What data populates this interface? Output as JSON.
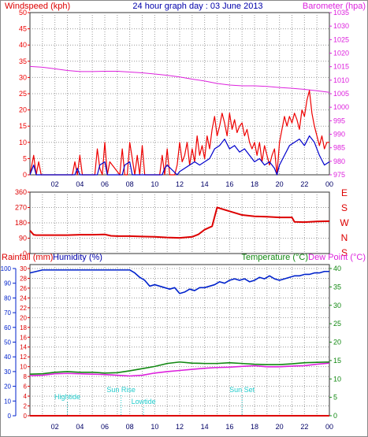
{
  "header": {
    "windspeed_label": "Windspeed (kph)",
    "title": "24 hour graph day : 03 June 2013",
    "barometer_label": "Barometer (hpa)"
  },
  "labels": {
    "rainfall": "Rainfall (mm)",
    "humidity": "Humidity (%)",
    "temperature": "Temperature (°C)",
    "dewpoint": "Dew Point (°C)"
  },
  "annotations": {
    "hightide": "Hightide",
    "sunrise": "Sun Rise",
    "lowtide": "Lowtide",
    "sunset": "Sun Set"
  },
  "colors": {
    "wind": "#ee0000",
    "wind_avg": "#0000cc",
    "barometer": "#dd22dd",
    "direction": "#dd0000",
    "humidity": "#0022cc",
    "temperature": "#118811",
    "dewpoint": "#dd22dd",
    "rainfall": "#dd0000",
    "grid": "#999999",
    "annotation": "#22cccc",
    "title": "#0000aa"
  },
  "x_ticks": [
    "02",
    "04",
    "06",
    "08",
    "10",
    "12",
    "14",
    "16",
    "18",
    "20",
    "22",
    "00"
  ],
  "compass": [
    "E",
    "S",
    "W",
    "N",
    "S"
  ],
  "chart_data": [
    {
      "type": "line",
      "name": "wind",
      "xlim": [
        0,
        24
      ],
      "ylim_left": [
        0,
        50
      ],
      "yticks_left": [
        0,
        5,
        10,
        15,
        20,
        25,
        30,
        35,
        40,
        45,
        50
      ],
      "ylim_right": [
        975,
        1035
      ],
      "yticks_right": [
        975,
        980,
        985,
        990,
        995,
        1000,
        1005,
        1010,
        1015,
        1020,
        1025,
        1030,
        1035
      ],
      "series": [
        {
          "name": "Windspeed (kph)",
          "x": [
            0,
            0.3,
            0.5,
            0.7,
            0.9,
            1.2,
            3.4,
            3.6,
            3.8,
            4.0,
            4.2,
            5.2,
            5.4,
            5.6,
            5.8,
            6.0,
            6.2,
            6.4,
            7.2,
            7.4,
            7.6,
            7.8,
            8.0,
            8.4,
            8.6,
            8.8,
            9.0,
            9.2,
            10.4,
            10.6,
            10.8,
            11.0,
            11.2,
            11.6,
            11.8,
            12.0,
            12.2,
            12.4,
            12.6,
            12.8,
            13.0,
            13.2,
            13.4,
            13.6,
            13.8,
            14.0,
            14.2,
            14.4,
            14.6,
            14.8,
            15.0,
            15.2,
            15.4,
            15.6,
            15.8,
            16.0,
            16.2,
            16.4,
            16.6,
            16.8,
            17.0,
            17.2,
            17.4,
            17.6,
            17.8,
            18.0,
            18.2,
            18.4,
            18.6,
            18.8,
            19.0,
            19.2,
            19.4,
            19.6,
            19.8,
            20.0,
            20.2,
            20.4,
            20.6,
            20.8,
            21.0,
            21.2,
            21.4,
            21.6,
            21.8,
            22.0,
            22.2,
            22.4,
            22.6,
            22.8,
            23.0,
            23.2,
            23.4,
            23.6,
            23.8,
            24.0
          ],
          "values": [
            0,
            6,
            0,
            4,
            0,
            0,
            0,
            4,
            0,
            6,
            0,
            0,
            8,
            2,
            0,
            10,
            0,
            4,
            0,
            8,
            0,
            0,
            10,
            0,
            6,
            0,
            9,
            0,
            0,
            6,
            0,
            8,
            0,
            0,
            3,
            10,
            4,
            6,
            10,
            3,
            8,
            4,
            12,
            6,
            9,
            5,
            12,
            8,
            14,
            18,
            12,
            15,
            19,
            16,
            12,
            19,
            14,
            17,
            13,
            15,
            16,
            12,
            14,
            10,
            8,
            10,
            6,
            10,
            4,
            9,
            6,
            3,
            6,
            8,
            0,
            10,
            14,
            18,
            15,
            18,
            16,
            19,
            17,
            14,
            20,
            18,
            23,
            26,
            19,
            15,
            12,
            9,
            12,
            8,
            10,
            10
          ]
        },
        {
          "name": "Average windspeed",
          "x": [
            0,
            0.3,
            0.5,
            0.9,
            3.6,
            3.8,
            4.0,
            5.4,
            5.6,
            6.0,
            6.2,
            7.4,
            7.6,
            8.0,
            8.2,
            10.6,
            10.8,
            11.0,
            11.8,
            12.0,
            12.4,
            12.8,
            13.2,
            13.6,
            14.0,
            14.4,
            14.8,
            15.2,
            15.6,
            16.0,
            16.4,
            16.8,
            17.2,
            17.6,
            18.0,
            18.4,
            18.8,
            19.2,
            19.6,
            19.8,
            20.0,
            20.4,
            20.8,
            21.2,
            21.6,
            22.0,
            22.4,
            22.8,
            23.2,
            23.6,
            24.0
          ],
          "values": [
            0,
            3,
            0,
            0,
            0,
            2,
            0,
            0,
            3,
            4,
            0,
            0,
            3,
            4,
            0,
            0,
            2,
            3,
            0,
            1,
            2,
            3,
            4,
            3,
            4,
            5,
            8,
            9,
            11,
            8,
            9,
            7,
            8,
            6,
            4,
            5,
            3,
            4,
            2,
            0,
            3,
            6,
            9,
            10,
            11,
            9,
            12,
            10,
            6,
            3,
            4
          ]
        },
        {
          "name": "Barometer (hpa)",
          "axis": "right",
          "x": [
            0,
            1,
            2,
            3,
            4,
            5,
            6,
            7,
            8,
            9,
            10,
            11,
            12,
            13,
            14,
            15,
            16,
            17,
            18,
            19,
            20,
            21,
            22,
            23,
            24
          ],
          "values": [
            1015.1,
            1014.8,
            1014.2,
            1013.6,
            1013.2,
            1013.2,
            1013.3,
            1013.3,
            1013.0,
            1012.7,
            1012.3,
            1011.8,
            1011.2,
            1010.4,
            1009.7,
            1008.8,
            1008.2,
            1007.9,
            1007.9,
            1007.7,
            1007.3,
            1007.0,
            1006.6,
            1006.1,
            1005.5
          ]
        }
      ]
    },
    {
      "type": "line",
      "name": "wind-direction",
      "xlim": [
        0,
        24
      ],
      "ylim": [
        0,
        360
      ],
      "yticks": [
        0,
        90,
        180,
        270,
        360
      ],
      "series": [
        {
          "name": "Wind direction",
          "x": [
            0,
            0.3,
            0.5,
            1,
            2,
            3,
            4,
            5,
            6,
            6.5,
            7,
            8,
            9,
            10,
            11,
            12,
            13,
            13.5,
            14,
            14.6,
            14.8,
            15,
            16,
            17,
            18,
            19,
            20,
            21,
            21.2,
            22,
            23,
            24
          ],
          "values": [
            135,
            110,
            108,
            108,
            108,
            108,
            110,
            110,
            112,
            104,
            102,
            102,
            100,
            98,
            94,
            92,
            98,
            112,
            140,
            160,
            215,
            270,
            248,
            226,
            218,
            216,
            212,
            212,
            186,
            184,
            188,
            190
          ]
        }
      ]
    },
    {
      "type": "line",
      "name": "temperature-humidity",
      "xlim": [
        0,
        24
      ],
      "ylim_left_outer": [
        0,
        100
      ],
      "yticks_left_outer": [
        0,
        10,
        20,
        30,
        40,
        50,
        60,
        70,
        80,
        90,
        100
      ],
      "ylim_left_inner": [
        0,
        30
      ],
      "yticks_left_inner": [
        0,
        2,
        4,
        6,
        8,
        10,
        12,
        14,
        16,
        18,
        20,
        22,
        24,
        26,
        28,
        30
      ],
      "ylim_right": [
        0,
        40
      ],
      "yticks_right": [
        0,
        5,
        10,
        15,
        20,
        25,
        30,
        35,
        40
      ],
      "series": [
        {
          "name": "Humidity (%)",
          "axis": "left_outer",
          "x": [
            0,
            0.5,
            1,
            2,
            3,
            4,
            5,
            6,
            7,
            8,
            8.4,
            8.8,
            9.2,
            9.6,
            10,
            10.4,
            10.8,
            11.2,
            11.6,
            12,
            12.4,
            12.8,
            13.2,
            13.6,
            14,
            14.4,
            14.8,
            15.2,
            15.6,
            16,
            16.4,
            16.8,
            17.2,
            17.6,
            18,
            18.4,
            18.8,
            19.2,
            19.6,
            20,
            20.4,
            20.8,
            21.2,
            21.6,
            22,
            22.4,
            22.8,
            23.2,
            23.6,
            24
          ],
          "values": [
            97,
            98,
            99,
            99,
            99,
            99,
            99,
            99,
            99,
            99,
            97,
            94,
            92,
            88,
            89,
            88,
            87,
            86,
            87,
            83,
            84,
            86,
            85,
            87,
            87,
            88,
            89,
            91,
            90,
            92,
            93,
            92,
            93,
            91,
            92,
            94,
            93,
            95,
            93,
            92,
            93,
            94,
            95,
            95,
            96,
            96,
            97,
            97,
            98,
            98
          ]
        },
        {
          "name": "Temperature (°C)",
          "axis": "right",
          "x": [
            0,
            1,
            2,
            3,
            4,
            5,
            6,
            7,
            8,
            9,
            10,
            11,
            12,
            13,
            14,
            15,
            16,
            17,
            18,
            19,
            20,
            21,
            22,
            23,
            24
          ],
          "values": [
            11.3,
            11.4,
            11.8,
            12.0,
            11.8,
            11.8,
            11.6,
            11.7,
            12.2,
            12.8,
            13.4,
            14.2,
            14.6,
            14.3,
            14.2,
            14.2,
            14.4,
            14.2,
            14.0,
            13.9,
            13.9,
            14.1,
            14.4,
            14.5,
            14.6
          ]
        },
        {
          "name": "Dew Point (°C)",
          "axis": "right",
          "x": [
            0,
            1,
            2,
            3,
            4,
            5,
            6,
            7,
            8,
            9,
            10,
            11,
            12,
            13,
            14,
            15,
            16,
            17,
            18,
            19,
            20,
            21,
            22,
            23,
            24
          ],
          "values": [
            10.9,
            11.0,
            11.4,
            11.5,
            11.4,
            11.3,
            11.2,
            11.0,
            10.8,
            11.0,
            11.6,
            12.0,
            12.3,
            12.6,
            12.9,
            13.1,
            13.2,
            13.4,
            13.6,
            13.3,
            13.3,
            13.5,
            13.6,
            14.0,
            14.3
          ]
        },
        {
          "name": "Rainfall (mm)",
          "axis": "left_inner",
          "x": [
            0,
            24
          ],
          "values": [
            0,
            0
          ]
        }
      ],
      "markers": [
        {
          "key": "hightide",
          "x": 3.0
        },
        {
          "key": "sunrise",
          "x": 7.3
        },
        {
          "key": "lowtide",
          "x": 9.1
        },
        {
          "key": "sunset",
          "x": 17.0
        }
      ]
    }
  ]
}
